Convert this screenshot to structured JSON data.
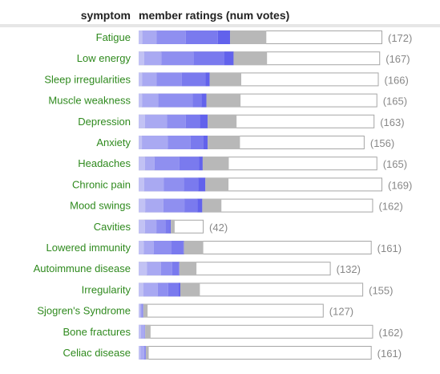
{
  "header": {
    "symptom_col": "symptom",
    "ratings_col": "member ratings (num votes)"
  },
  "colors": {
    "segments": [
      "#c2c2f4",
      "#a9a9f2",
      "#8f8ff0",
      "#7a7aee",
      "#6262ec",
      "#b8b8b8"
    ],
    "track_border": "#a6a6a6",
    "label": "#2f8a1e",
    "count": "#888888",
    "divider": "#cccccc"
  },
  "chart_data": {
    "type": "bar",
    "stacked": true,
    "x_unit": "percent of bar length",
    "categories": [
      "Fatigue",
      "Low energy",
      "Sleep irregularities",
      "Muscle weakness",
      "Depression",
      "Anxiety",
      "Headaches",
      "Chronic pain",
      "Mood swings",
      "Cavities",
      "Lowered immunity",
      "Autoimmune disease",
      "Irregularity",
      "Sjogren's Syndrome",
      "Bone fractures",
      "Celiac disease"
    ],
    "votes": [
      172,
      167,
      166,
      165,
      163,
      156,
      165,
      169,
      162,
      42,
      161,
      132,
      155,
      127,
      162,
      161
    ],
    "counts": [
      "(172)",
      "(167)",
      "(166)",
      "(165)",
      "(163)",
      "(156)",
      "(165)",
      "(169)",
      "(162)",
      "(42)",
      "(161)",
      "(132)",
      "(155)",
      "(127)",
      "(162)",
      "(161)"
    ],
    "segments": [
      [
        2.6,
        10.1,
        20.5,
        22.7,
        8.6,
        25.6
      ],
      [
        3.9,
        12.1,
        22.8,
        21.7,
        6.5,
        23.6
      ],
      [
        2.4,
        10.3,
        17.8,
        16.7,
        2.9,
        22.3
      ],
      [
        2.4,
        11.5,
        24.3,
        6.1,
        3.5,
        24.1
      ],
      [
        4.5,
        15.6,
        13.2,
        9.9,
        5.5,
        20.4
      ],
      [
        2.3,
        18.3,
        16.1,
        9.1,
        2.9,
        22.8
      ],
      [
        4.5,
        6.7,
        17.6,
        13.7,
        2.7,
        18.4
      ],
      [
        3.9,
        13.9,
        14.0,
        10.2,
        5.1,
        16.3
      ],
      [
        4.6,
        12.9,
        14.8,
        9.1,
        3.5,
        13.5
      ],
      [
        4.4,
        8.1,
        6.5,
        3.1,
        0.6,
        2.7
      ],
      [
        3.6,
        7.0,
        12.6,
        8.3,
        0.4,
        13.7
      ],
      [
        5.8,
        10.0,
        7.9,
        5.0,
        0.0,
        12.1
      ],
      [
        3.4,
        10.1,
        7.3,
        7.5,
        1.1,
        13.8
      ],
      [
        1.1,
        0.8,
        1.4,
        0.0,
        0.0,
        3.0
      ],
      [
        1.5,
        2.7,
        0.4,
        0.0,
        0.0,
        3.8
      ],
      [
        1.2,
        2.6,
        1.3,
        0.0,
        0.0,
        2.0
      ]
    ]
  }
}
